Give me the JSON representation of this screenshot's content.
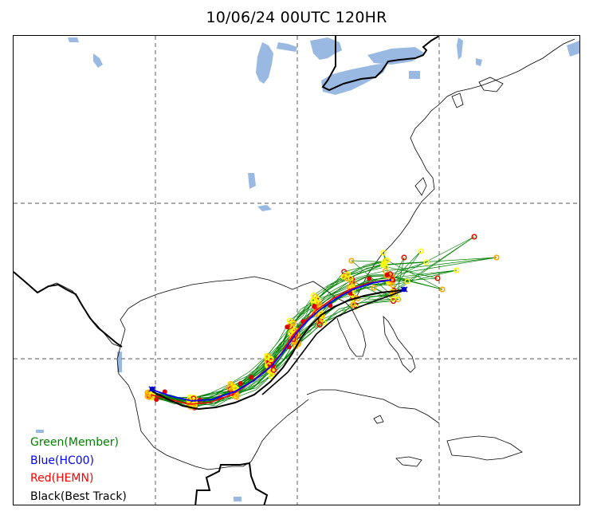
{
  "title": "10/06/24 00UTC 120HR",
  "legend": {
    "member": "Green(Member)",
    "hc00": "Blue(HC00)",
    "hemn": "Red(HEMN)",
    "best_track": "Black(Best Track)"
  },
  "colors": {
    "member": "#008000",
    "hc00": "#0000ff",
    "hemn": "#ff0000",
    "best_track": "#000000",
    "water": "#99b9e2",
    "point_yellow": "#ffff00",
    "point_orange": "#ffa500",
    "point_red": "#dd0000"
  },
  "icons": {
    "storm_symbol": "hurricane-symbol-icon"
  }
}
